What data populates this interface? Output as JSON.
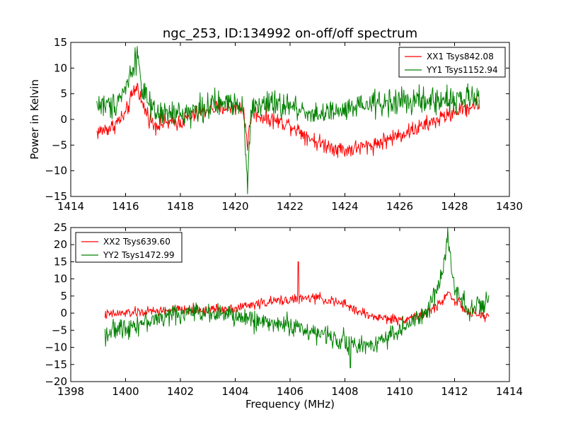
{
  "chart_data": {
    "title": "ngc_253, ID:134992 on-off/off spectrum",
    "panels": [
      {
        "type": "line",
        "xlim": [
          1414,
          1430
        ],
        "ylim": [
          -15,
          15
        ],
        "xticks": [
          1414,
          1416,
          1418,
          1420,
          1422,
          1424,
          1426,
          1428,
          1430
        ],
        "yticks": [
          -15,
          -10,
          -5,
          0,
          5,
          10,
          15
        ],
        "xlabel": "",
        "ylabel": "Power in Kelvin",
        "grid": false,
        "legend_position": "top-right",
        "series": [
          {
            "name": "XX1 Tsys842.08",
            "color": "#ff0000",
            "noise": 1.0,
            "x": [
              1414.95,
              1415.5,
              1416.0,
              1416.3,
              1416.45,
              1416.6,
              1417.0,
              1418.0,
              1419.0,
              1420.0,
              1420.3,
              1420.45,
              1420.6,
              1421.0,
              1422.0,
              1423.0,
              1424.0,
              1425.0,
              1426.0,
              1427.0,
              1428.0,
              1428.9
            ],
            "y": [
              -2.5,
              -1.5,
              1.0,
              5.5,
              6.5,
              3.0,
              -1.0,
              -0.5,
              2.0,
              2.5,
              2.0,
              -5.0,
              1.5,
              0.5,
              -1.0,
              -4.5,
              -6.0,
              -5.0,
              -3.0,
              -1.0,
              1.5,
              3.0
            ],
            "spikes": []
          },
          {
            "name": "YY1 Tsys1152.94",
            "color": "#008000",
            "noise": 1.6,
            "x": [
              1414.95,
              1415.5,
              1416.0,
              1416.3,
              1416.45,
              1416.6,
              1417.0,
              1418.0,
              1419.0,
              1420.0,
              1420.3,
              1420.45,
              1420.6,
              1421.0,
              1422.0,
              1423.0,
              1424.0,
              1425.0,
              1426.0,
              1427.0,
              1428.0,
              1428.9
            ],
            "y": [
              3.0,
              2.5,
              6.0,
              11.0,
              12.5,
              6.0,
              1.0,
              1.0,
              2.5,
              3.5,
              2.5,
              -12.0,
              2.5,
              3.0,
              2.5,
              1.0,
              1.5,
              3.0,
              3.5,
              3.5,
              4.0,
              4.0
            ],
            "spikes": [
              {
                "x": 1420.45,
                "y": -14.5
              },
              {
                "x": 1416.35,
                "y": 14.0
              }
            ]
          }
        ]
      },
      {
        "type": "line",
        "xlim": [
          1398,
          1414
        ],
        "ylim": [
          -20,
          25
        ],
        "xticks": [
          1398,
          1400,
          1402,
          1404,
          1406,
          1408,
          1410,
          1412,
          1414
        ],
        "yticks": [
          -20,
          -15,
          -10,
          -5,
          0,
          5,
          10,
          15,
          20,
          25
        ],
        "xlabel": "Frequency (MHz)",
        "ylabel": "",
        "grid": false,
        "legend_position": "top-left",
        "series": [
          {
            "name": "XX2 Tsys639.60",
            "color": "#ff0000",
            "noise": 0.9,
            "x": [
              1399.25,
              1400.0,
              1401.0,
              1402.0,
              1403.0,
              1404.0,
              1405.0,
              1406.0,
              1407.0,
              1408.0,
              1408.5,
              1409.0,
              1410.0,
              1411.0,
              1411.5,
              1411.75,
              1412.0,
              1412.5,
              1413.25
            ],
            "y": [
              -0.5,
              0.0,
              0.5,
              1.0,
              1.0,
              1.5,
              3.0,
              4.0,
              4.5,
              2.5,
              0.5,
              -1.0,
              -2.0,
              0.0,
              3.0,
              6.0,
              4.0,
              0.0,
              -1.0
            ],
            "spikes": [
              {
                "x": 1406.3,
                "y": 15.0
              }
            ]
          },
          {
            "name": "YY2 Tsys1472.99",
            "color": "#008000",
            "noise": 1.8,
            "x": [
              1399.25,
              1400.0,
              1401.0,
              1402.0,
              1403.0,
              1404.0,
              1405.0,
              1406.0,
              1407.0,
              1408.0,
              1408.5,
              1409.0,
              1410.0,
              1411.0,
              1411.5,
              1411.75,
              1412.0,
              1412.5,
              1413.25
            ],
            "y": [
              -6.0,
              -4.0,
              -2.0,
              0.0,
              0.5,
              -1.0,
              -2.5,
              -3.5,
              -6.0,
              -8.0,
              -10.0,
              -9.0,
              -5.0,
              0.0,
              10.0,
              22.0,
              8.0,
              1.0,
              3.0
            ],
            "spikes": [
              {
                "x": 1411.75,
                "y": 25.0
              },
              {
                "x": 1408.2,
                "y": -16.0
              }
            ]
          }
        ]
      }
    ]
  }
}
